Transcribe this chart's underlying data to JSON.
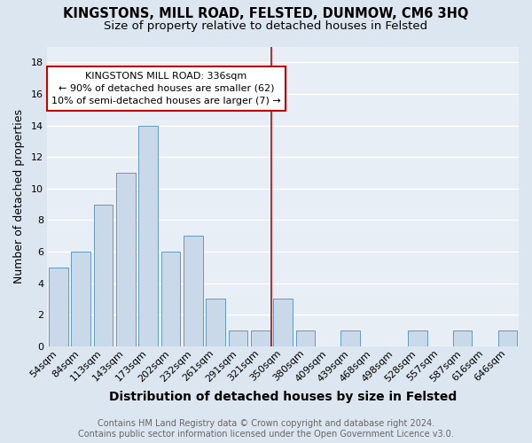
{
  "title": "KINGSTONS, MILL ROAD, FELSTED, DUNMOW, CM6 3HQ",
  "subtitle": "Size of property relative to detached houses in Felsted",
  "xlabel": "Distribution of detached houses by size in Felsted",
  "ylabel": "Number of detached properties",
  "footer_line1": "Contains HM Land Registry data © Crown copyright and database right 2024.",
  "footer_line2": "Contains public sector information licensed under the Open Government Licence v3.0.",
  "categories": [
    "54sqm",
    "84sqm",
    "113sqm",
    "143sqm",
    "173sqm",
    "202sqm",
    "232sqm",
    "261sqm",
    "291sqm",
    "321sqm",
    "350sqm",
    "380sqm",
    "409sqm",
    "439sqm",
    "468sqm",
    "498sqm",
    "528sqm",
    "557sqm",
    "587sqm",
    "616sqm",
    "646sqm"
  ],
  "values": [
    5,
    6,
    9,
    11,
    14,
    6,
    7,
    3,
    1,
    1,
    3,
    1,
    0,
    1,
    0,
    0,
    1,
    0,
    1,
    0,
    1
  ],
  "bar_color": "#c9d9ea",
  "bar_edge_color": "#6699bb",
  "vline_color": "#cc0000",
  "annotation_line1": "KINGSTONS MILL ROAD: 336sqm",
  "annotation_line2": "← 90% of detached houses are smaller (62)",
  "annotation_line3": "10% of semi-detached houses are larger (7) →",
  "annotation_box_color": "#ffffff",
  "annotation_box_edge_color": "#cc0000",
  "ylim": [
    0,
    19
  ],
  "yticks": [
    0,
    2,
    4,
    6,
    8,
    10,
    12,
    14,
    16,
    18
  ],
  "bg_color": "#dce6f0",
  "plot_bg_color": "#e8eef5",
  "grid_color": "#ffffff",
  "title_fontsize": 10.5,
  "subtitle_fontsize": 9.5,
  "tick_fontsize": 8,
  "ylabel_fontsize": 9,
  "xlabel_fontsize": 10,
  "footer_fontsize": 7,
  "footer_color": "#666666"
}
